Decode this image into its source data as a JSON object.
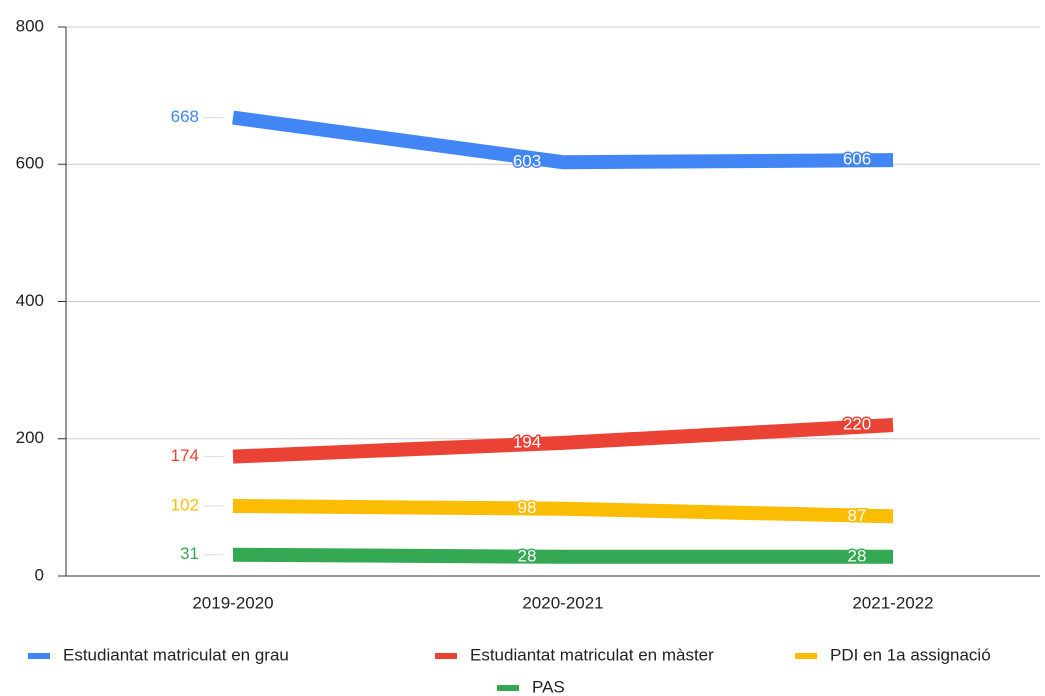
{
  "chart_data": {
    "type": "line",
    "categories": [
      "2019-2020",
      "2020-2021",
      "2021-2022"
    ],
    "series": [
      {
        "name": "Estudiantat matriculat en grau",
        "color": "#4285f4",
        "values": [
          668,
          603,
          606
        ]
      },
      {
        "name": "Estudiantat matriculat en màster",
        "color": "#ea4335",
        "values": [
          174,
          194,
          220
        ]
      },
      {
        "name": "PDI en 1a assignació",
        "color": "#fbbc04",
        "values": [
          102,
          98,
          87
        ]
      },
      {
        "name": "PAS",
        "color": "#34a853",
        "values": [
          31,
          28,
          28
        ]
      }
    ],
    "ylim": [
      0,
      800
    ],
    "yticks": [
      0,
      200,
      400,
      600,
      800
    ],
    "grid": true,
    "legend": "bottom"
  }
}
